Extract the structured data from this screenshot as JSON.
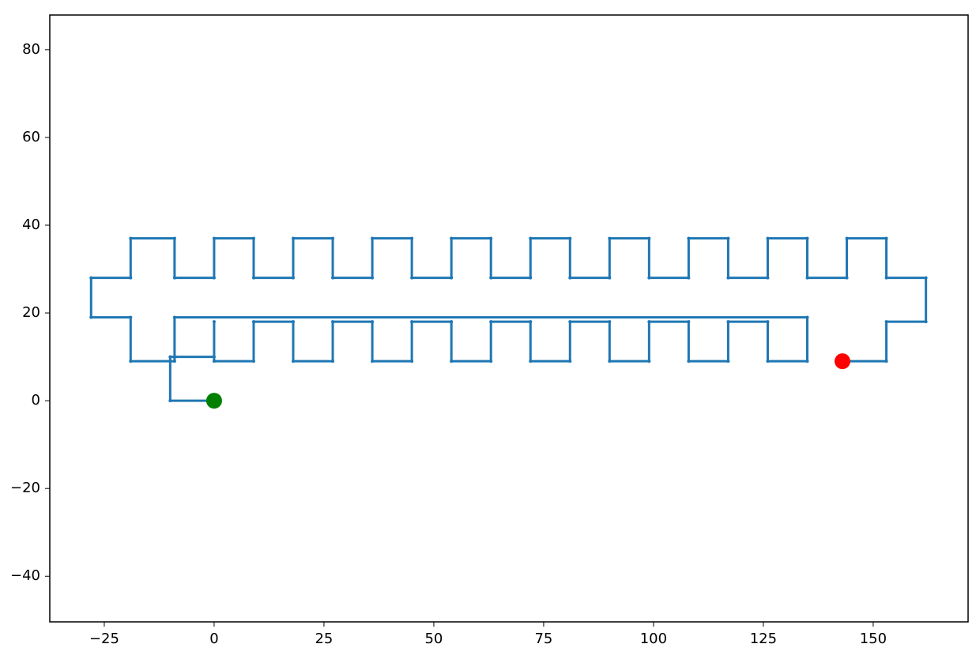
{
  "chart_data": {
    "type": "line",
    "x": [
      0,
      -10,
      -10,
      0,
      0,
      0,
      9,
      9,
      18,
      18,
      27,
      27,
      36,
      36,
      45,
      45,
      54,
      54,
      63,
      63,
      72,
      72,
      81,
      81,
      90,
      90,
      99,
      99,
      108,
      108,
      117,
      117,
      126,
      126,
      135,
      135,
      -9,
      -9,
      -19,
      -19,
      -28,
      -28,
      -19,
      -19,
      -9,
      -9,
      0,
      0,
      9,
      9,
      18,
      18,
      27,
      27,
      36,
      36,
      45,
      45,
      54,
      54,
      63,
      63,
      72,
      72,
      81,
      81,
      90,
      90,
      99,
      99,
      108,
      108,
      117,
      117,
      126,
      126,
      135,
      135,
      144,
      144,
      153,
      153,
      162,
      162,
      153,
      153,
      143
    ],
    "y": [
      0,
      0,
      10,
      10,
      18,
      9,
      9,
      18,
      18,
      9,
      9,
      18,
      18,
      9,
      9,
      18,
      18,
      9,
      9,
      18,
      18,
      9,
      9,
      18,
      18,
      9,
      9,
      18,
      18,
      9,
      9,
      18,
      18,
      9,
      9,
      19,
      19,
      9,
      9,
      19,
      19,
      28,
      28,
      37,
      37,
      28,
      28,
      37,
      37,
      28,
      28,
      37,
      37,
      28,
      28,
      37,
      37,
      28,
      28,
      37,
      37,
      28,
      28,
      37,
      37,
      28,
      28,
      37,
      37,
      28,
      28,
      37,
      37,
      28,
      28,
      37,
      37,
      28,
      28,
      37,
      37,
      28,
      28,
      18,
      18,
      9,
      9
    ],
    "color": "#1f77b4",
    "markers": [
      {
        "x": 0,
        "y": 0,
        "color": "#008000"
      },
      {
        "x": 143,
        "y": 9,
        "color": "#ff0000"
      }
    ],
    "xlim": [
      -37.4,
      171.6
    ],
    "ylim": [
      -50.4,
      87.9
    ],
    "xticks": [
      {
        "value": -25,
        "label": "−25"
      },
      0,
      25,
      50,
      75,
      100,
      125,
      150
    ],
    "yticks": [
      {
        "value": -40,
        "label": "−40"
      },
      {
        "value": -20,
        "label": "−20"
      },
      0,
      20,
      40,
      60,
      80
    ]
  }
}
